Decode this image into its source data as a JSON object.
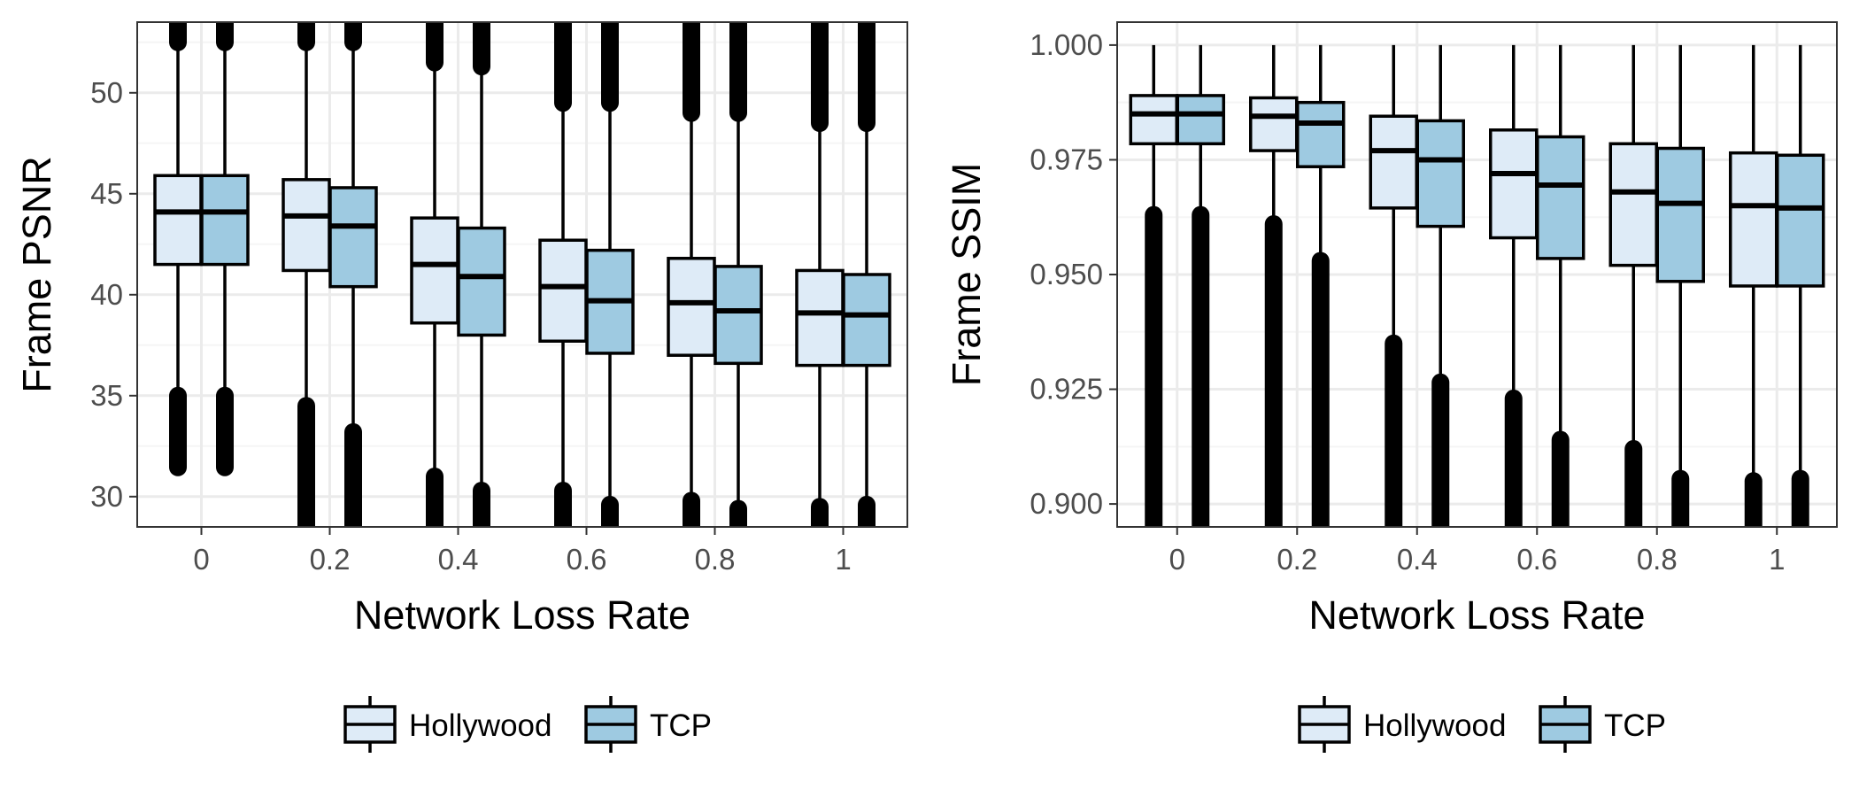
{
  "colors": {
    "Hollywood": "#deebf7",
    "TCP": "#9ecae1",
    "outline": "#000000",
    "grid_major": "#ebebeb",
    "grid_minor": "#f5f5f5",
    "panel_border": "#333333",
    "tick_text": "#4d4d4d"
  },
  "chart_data": [
    {
      "type": "boxplot",
      "xlabel": "Network Loss Rate",
      "ylabel": "Frame PSNR",
      "categories": [
        "0",
        "0.2",
        "0.4",
        "0.6",
        "0.8",
        "1"
      ],
      "ylim": [
        28.5,
        53.5
      ],
      "yticks": [
        30,
        35,
        40,
        45,
        50
      ],
      "ytick_labels": [
        "30",
        "35",
        "40",
        "45",
        "50"
      ],
      "grid": true,
      "legend": {
        "position": "bottom",
        "entries": [
          "Hollywood",
          "TCP"
        ]
      },
      "series": [
        {
          "name": "Hollywood",
          "boxes": [
            {
              "q1": 41.5,
              "median": 44.1,
              "q3": 45.9,
              "whisker_low": 35.0,
              "whisker_high": 52.5,
              "outliers_low": [
                31.8,
                35.0
              ],
              "outliers_high": [
                52.5,
                53.5
              ]
            },
            {
              "q1": 41.2,
              "median": 43.9,
              "q3": 45.7,
              "whisker_low": 34.5,
              "whisker_high": 52.5,
              "outliers_low": [
                28.5,
                34.5
              ],
              "outliers_high": [
                52.5,
                53.5
              ]
            },
            {
              "q1": 38.6,
              "median": 41.5,
              "q3": 43.8,
              "whisker_low": 31.0,
              "whisker_high": 53.0,
              "outliers_low": [
                28.5,
                31.0
              ],
              "outliers_high": [
                51.5,
                53.5
              ]
            },
            {
              "q1": 37.7,
              "median": 40.4,
              "q3": 42.7,
              "whisker_low": 30.3,
              "whisker_high": 53.0,
              "outliers_low": [
                28.5,
                30.3
              ],
              "outliers_high": [
                49.5,
                53.5
              ]
            },
            {
              "q1": 37.0,
              "median": 39.6,
              "q3": 41.8,
              "whisker_low": 29.8,
              "whisker_high": 53.0,
              "outliers_low": [
                28.5,
                29.8
              ],
              "outliers_high": [
                49.0,
                53.5
              ]
            },
            {
              "q1": 36.5,
              "median": 39.1,
              "q3": 41.2,
              "whisker_low": 29.5,
              "whisker_high": 53.0,
              "outliers_low": [
                28.5,
                29.5
              ],
              "outliers_high": [
                48.5,
                53.5
              ]
            }
          ]
        },
        {
          "name": "TCP",
          "boxes": [
            {
              "q1": 41.5,
              "median": 44.1,
              "q3": 45.9,
              "whisker_low": 35.0,
              "whisker_high": 52.5,
              "outliers_low": [
                31.8,
                35.0
              ],
              "outliers_high": [
                52.5,
                53.5
              ]
            },
            {
              "q1": 40.4,
              "median": 43.4,
              "q3": 45.3,
              "whisker_low": 33.2,
              "whisker_high": 52.5,
              "outliers_low": [
                28.5,
                33.2
              ],
              "outliers_high": [
                52.5,
                53.5
              ]
            },
            {
              "q1": 38.0,
              "median": 40.9,
              "q3": 43.3,
              "whisker_low": 30.3,
              "whisker_high": 51.3,
              "outliers_low": [
                28.5,
                30.3
              ],
              "outliers_high": [
                51.3,
                53.5
              ]
            },
            {
              "q1": 37.1,
              "median": 39.7,
              "q3": 42.2,
              "whisker_low": 29.6,
              "whisker_high": 49.5,
              "outliers_low": [
                28.5,
                29.6
              ],
              "outliers_high": [
                49.5,
                53.5
              ]
            },
            {
              "q1": 36.6,
              "median": 39.2,
              "q3": 41.4,
              "whisker_low": 29.4,
              "whisker_high": 49.0,
              "outliers_low": [
                28.5,
                29.4
              ],
              "outliers_high": [
                49.0,
                53.5
              ]
            },
            {
              "q1": 36.5,
              "median": 39.0,
              "q3": 41.0,
              "whisker_low": 29.6,
              "whisker_high": 48.5,
              "outliers_low": [
                28.5,
                29.6
              ],
              "outliers_high": [
                48.5,
                53.5
              ]
            }
          ]
        }
      ]
    },
    {
      "type": "boxplot",
      "xlabel": "Network Loss Rate",
      "ylabel": "Frame SSIM",
      "categories": [
        "0",
        "0.2",
        "0.4",
        "0.6",
        "0.8",
        "1"
      ],
      "ylim": [
        0.895,
        1.005
      ],
      "yticks": [
        0.9,
        0.925,
        0.95,
        0.975,
        1.0
      ],
      "ytick_labels": [
        "0.900",
        "0.925",
        "0.950",
        "0.975",
        "1.000"
      ],
      "grid": true,
      "legend": {
        "position": "bottom",
        "entries": [
          "Hollywood",
          "TCP"
        ]
      },
      "series": [
        {
          "name": "Hollywood",
          "boxes": [
            {
              "q1": 0.9785,
              "median": 0.985,
              "q3": 0.989,
              "whisker_low": 0.963,
              "whisker_high": 1.0,
              "outliers_low": [
                0.895,
                0.963
              ],
              "outliers_high": []
            },
            {
              "q1": 0.977,
              "median": 0.9845,
              "q3": 0.9885,
              "whisker_low": 0.961,
              "whisker_high": 1.0,
              "outliers_low": [
                0.895,
                0.961
              ],
              "outliers_high": []
            },
            {
              "q1": 0.9645,
              "median": 0.977,
              "q3": 0.9845,
              "whisker_low": 0.935,
              "whisker_high": 1.0,
              "outliers_low": [
                0.895,
                0.935
              ],
              "outliers_high": []
            },
            {
              "q1": 0.958,
              "median": 0.972,
              "q3": 0.9815,
              "whisker_low": 0.923,
              "whisker_high": 1.0,
              "outliers_low": [
                0.895,
                0.923
              ],
              "outliers_high": []
            },
            {
              "q1": 0.952,
              "median": 0.968,
              "q3": 0.9785,
              "whisker_low": 0.912,
              "whisker_high": 1.0,
              "outliers_low": [
                0.895,
                0.912
              ],
              "outliers_high": []
            },
            {
              "q1": 0.9475,
              "median": 0.965,
              "q3": 0.9765,
              "whisker_low": 0.905,
              "whisker_high": 1.0,
              "outliers_low": [
                0.895,
                0.905
              ],
              "outliers_high": []
            }
          ]
        },
        {
          "name": "TCP",
          "boxes": [
            {
              "q1": 0.9785,
              "median": 0.985,
              "q3": 0.989,
              "whisker_low": 0.963,
              "whisker_high": 1.0,
              "outliers_low": [
                0.895,
                0.963
              ],
              "outliers_high": []
            },
            {
              "q1": 0.9735,
              "median": 0.983,
              "q3": 0.9875,
              "whisker_low": 0.953,
              "whisker_high": 1.0,
              "outliers_low": [
                0.895,
                0.953
              ],
              "outliers_high": []
            },
            {
              "q1": 0.9605,
              "median": 0.975,
              "q3": 0.9835,
              "whisker_low": 0.9265,
              "whisker_high": 1.0,
              "outliers_low": [
                0.895,
                0.9265
              ],
              "outliers_high": []
            },
            {
              "q1": 0.9535,
              "median": 0.9695,
              "q3": 0.98,
              "whisker_low": 0.914,
              "whisker_high": 1.0,
              "outliers_low": [
                0.895,
                0.914
              ],
              "outliers_high": []
            },
            {
              "q1": 0.9485,
              "median": 0.9655,
              "q3": 0.9775,
              "whisker_low": 0.9055,
              "whisker_high": 1.0,
              "outliers_low": [
                0.895,
                0.9055
              ],
              "outliers_high": []
            },
            {
              "q1": 0.9475,
              "median": 0.9645,
              "q3": 0.976,
              "whisker_low": 0.9055,
              "whisker_high": 1.0,
              "outliers_low": [
                0.895,
                0.9055
              ],
              "outliers_high": []
            }
          ]
        }
      ]
    }
  ]
}
